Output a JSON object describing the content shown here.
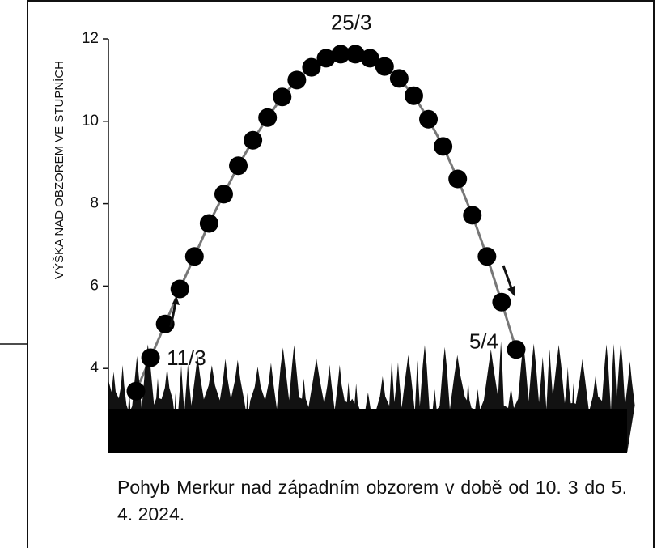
{
  "chart_data": {
    "type": "line",
    "y_label": "VÝŠKA NAD OBZOREM VE STUPNÍCH",
    "caption": "Pohyb Merkur nad západním obzorem v době od 10. 3 do 5. 4. 2024.",
    "categories": [
      null,
      "11/3",
      null,
      null,
      null,
      null,
      null,
      null,
      null,
      null,
      null,
      null,
      null,
      null,
      null,
      "25/3",
      null,
      null,
      null,
      null,
      null,
      null,
      null,
      null,
      null,
      null,
      "5/4"
    ],
    "values": [
      3.45,
      4.26,
      5.08,
      5.93,
      6.72,
      7.52,
      8.23,
      8.92,
      9.54,
      10.09,
      10.59,
      11.0,
      11.31,
      11.53,
      11.63,
      11.63,
      11.53,
      11.33,
      11.04,
      10.62,
      10.05,
      9.39,
      8.6,
      7.72,
      6.72,
      5.61,
      4.46
    ],
    "color": "#000000",
    "line_color": "#777777",
    "ylim": [
      2,
      12
    ],
    "yticks": [
      4,
      6,
      8,
      10,
      12
    ]
  }
}
